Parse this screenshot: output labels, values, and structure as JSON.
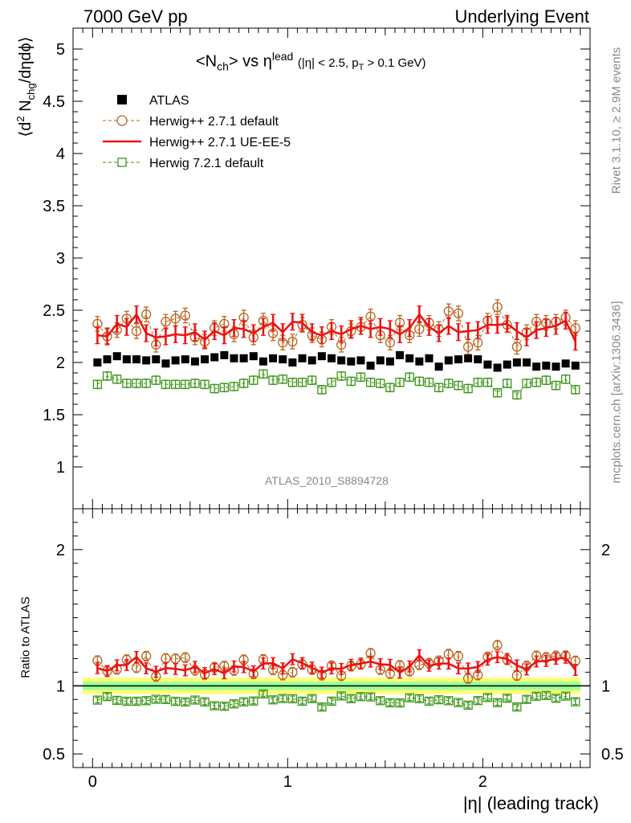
{
  "header": {
    "left": "7000 GeV pp",
    "right": "Underlying Event"
  },
  "side": {
    "rivet": "Rivet 3.1.10, ≥ 2.9M events",
    "mcplots": "mcplots.cern.ch [arXiv:1306.3436]"
  },
  "title": {
    "main": "<N",
    "sub": "ch",
    "mid": "> vs η",
    "sup": "lead",
    "cut_a": "(|η| < 2.5, p",
    "cut_sub": "T",
    "cut_b": " > 0.1 GeV)"
  },
  "analysis_id": "ATLAS_2010_S8894728",
  "ylabel_main": {
    "a": "⟨d",
    "sup": "2",
    "b": " N",
    "sub": "chg",
    "c": "/dηdϕ⟩"
  },
  "ylabel_ratio": "Ratio to ATLAS",
  "xlabel": "|η| (leading track)",
  "colors": {
    "atlas": "#000000",
    "h271": "#b8641e",
    "ueee5": "#ee1111",
    "h721": "#3c9618",
    "band_inner": "#99ff99",
    "band_outer": "#ffff77"
  },
  "chart_data": [
    {
      "type": "scatter",
      "panel": "main",
      "xlim": [
        -0.1,
        2.55
      ],
      "ylim": [
        0.6,
        5.2
      ],
      "yticks": [
        1,
        1.5,
        2,
        2.5,
        3,
        3.5,
        4,
        4.5,
        5
      ],
      "ytick_labels": [
        "1",
        "1.5",
        "2",
        "2.5",
        "3",
        "3.5",
        "4",
        "4.5",
        "5"
      ],
      "x": [
        0.025,
        0.075,
        0.125,
        0.175,
        0.225,
        0.275,
        0.325,
        0.375,
        0.425,
        0.475,
        0.525,
        0.575,
        0.625,
        0.675,
        0.725,
        0.775,
        0.825,
        0.875,
        0.925,
        0.975,
        1.025,
        1.075,
        1.125,
        1.175,
        1.225,
        1.275,
        1.325,
        1.375,
        1.425,
        1.475,
        1.525,
        1.575,
        1.625,
        1.675,
        1.725,
        1.775,
        1.825,
        1.875,
        1.925,
        1.975,
        2.025,
        2.075,
        2.125,
        2.175,
        2.225,
        2.275,
        2.325,
        2.375,
        2.425,
        2.475
      ],
      "series": [
        {
          "name": "ATLAS",
          "marker": "filled-square",
          "y": [
            2.0,
            2.03,
            2.06,
            2.03,
            2.03,
            2.02,
            2.03,
            1.99,
            2.02,
            2.03,
            2.01,
            2.03,
            2.05,
            2.07,
            2.04,
            2.04,
            2.06,
            2.01,
            2.04,
            2.03,
            2.0,
            2.04,
            2.02,
            2.06,
            2.04,
            2.02,
            2.01,
            2.02,
            1.97,
            2.02,
            2.01,
            2.07,
            2.04,
            2.01,
            2.04,
            1.96,
            2.02,
            2.03,
            2.04,
            2.03,
            1.98,
            1.95,
            1.98,
            2.0,
            2.0,
            1.96,
            1.97,
            1.96,
            1.99,
            1.97
          ]
        },
        {
          "name": "Herwig++ 2.7.1 default",
          "marker": "open-circle",
          "line": "dashed",
          "y": [
            2.37,
            2.25,
            2.31,
            2.42,
            2.3,
            2.46,
            2.17,
            2.39,
            2.42,
            2.45,
            2.24,
            2.2,
            2.33,
            2.37,
            2.27,
            2.43,
            2.24,
            2.4,
            2.28,
            2.19,
            2.2,
            2.36,
            2.26,
            2.22,
            2.34,
            2.17,
            2.3,
            2.34,
            2.44,
            2.26,
            2.19,
            2.38,
            2.26,
            2.32,
            2.38,
            2.32,
            2.49,
            2.47,
            2.15,
            2.19,
            2.4,
            2.53,
            2.36,
            2.15,
            2.29,
            2.39,
            2.38,
            2.39,
            2.43,
            2.33
          ]
        },
        {
          "name": "Herwig++ 2.7.1 UE-EE-5",
          "marker": "none",
          "line": "solid",
          "y": [
            2.26,
            2.25,
            2.37,
            2.34,
            2.46,
            2.28,
            2.24,
            2.25,
            2.27,
            2.26,
            2.29,
            2.22,
            2.3,
            2.26,
            2.33,
            2.32,
            2.28,
            2.34,
            2.38,
            2.29,
            2.39,
            2.38,
            2.29,
            2.26,
            2.3,
            2.27,
            2.32,
            2.35,
            2.32,
            2.34,
            2.32,
            2.27,
            2.33,
            2.46,
            2.34,
            2.28,
            2.35,
            2.29,
            2.3,
            2.31,
            2.36,
            2.36,
            2.37,
            2.3,
            2.24,
            2.31,
            2.33,
            2.35,
            2.4,
            2.2
          ]
        },
        {
          "name": "Herwig 7.2.1 default",
          "marker": "open-square",
          "line": "dashed",
          "y": [
            1.79,
            1.87,
            1.84,
            1.8,
            1.8,
            1.8,
            1.83,
            1.79,
            1.79,
            1.79,
            1.8,
            1.79,
            1.75,
            1.76,
            1.77,
            1.8,
            1.83,
            1.89,
            1.83,
            1.84,
            1.81,
            1.81,
            1.83,
            1.74,
            1.81,
            1.87,
            1.82,
            1.86,
            1.81,
            1.8,
            1.76,
            1.81,
            1.86,
            1.82,
            1.81,
            1.76,
            1.8,
            1.78,
            1.75,
            1.81,
            1.81,
            1.71,
            1.8,
            1.69,
            1.8,
            1.81,
            1.83,
            1.78,
            1.84,
            1.74
          ]
        }
      ]
    },
    {
      "type": "scatter",
      "panel": "ratio",
      "xlim": [
        -0.1,
        2.55
      ],
      "ylim": [
        0.4,
        2.3
      ],
      "yticks": [
        0.5,
        1,
        2
      ],
      "ytick_labels": [
        "0.5",
        "1",
        "2"
      ],
      "xticks": [
        0,
        1,
        2
      ],
      "xtick_labels": [
        "0",
        "1",
        "2"
      ],
      "band": {
        "inner": [
          0.97,
          1.03
        ],
        "outer": [
          0.94,
          1.06
        ]
      },
      "series_note": "ratios = model / ATLAS, same x as main panel"
    }
  ]
}
